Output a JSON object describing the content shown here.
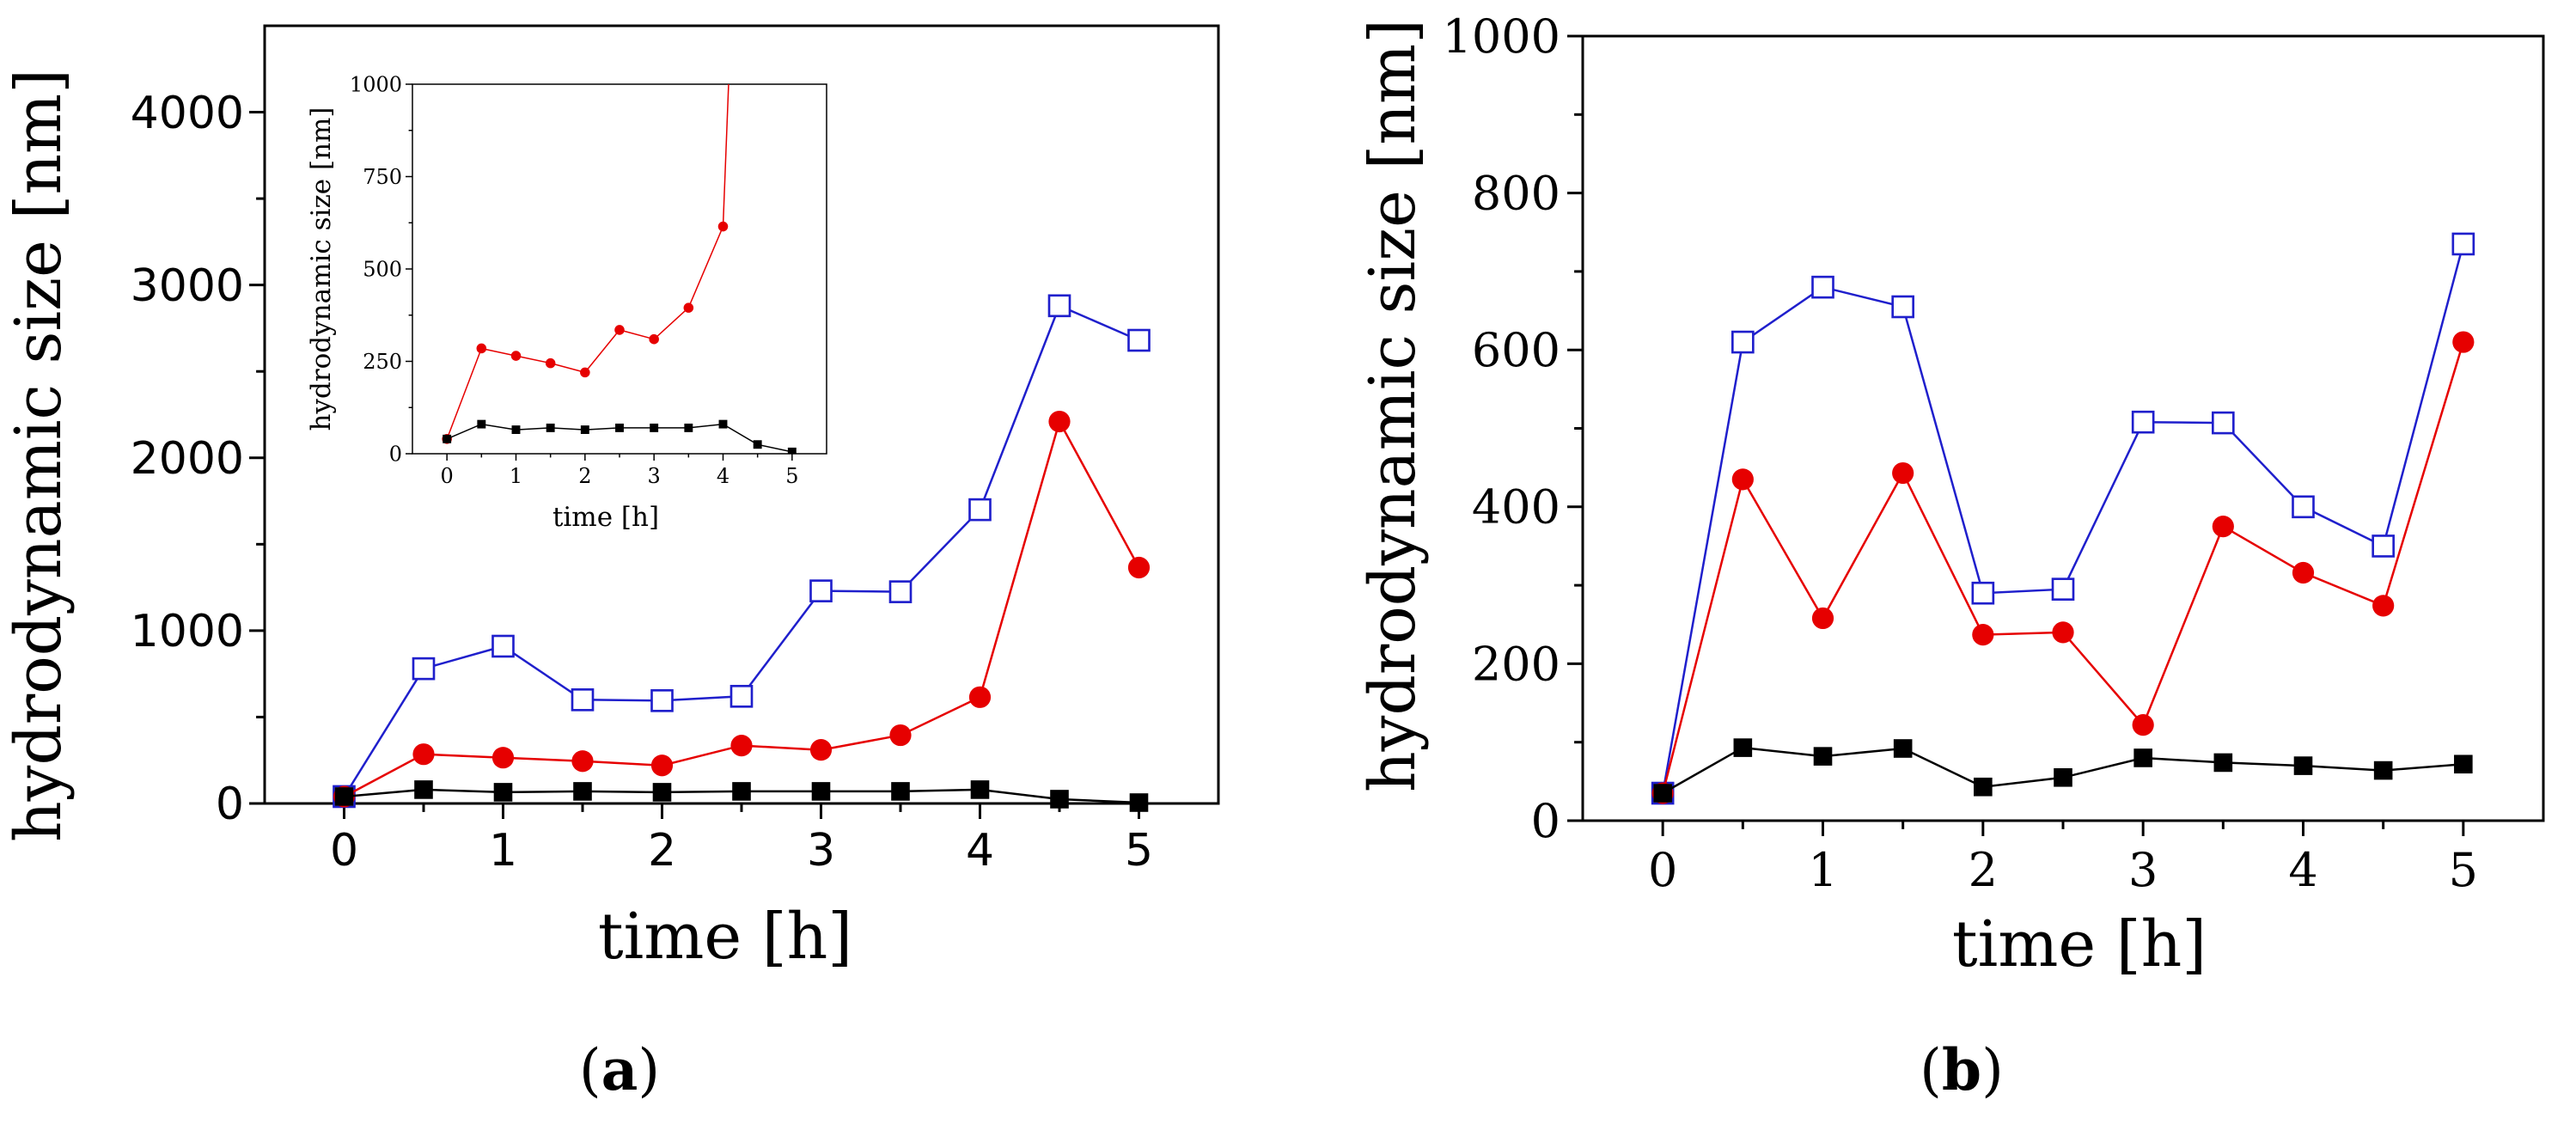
{
  "chart_data": [
    {
      "id": "a",
      "type": "line",
      "panel_label": "a",
      "xlabel": "time [h]",
      "ylabel": "hydrodynamic size [nm]",
      "xlim": [
        -0.5,
        5.5
      ],
      "ylim": [
        0,
        4500
      ],
      "xticks": [
        0,
        1,
        2,
        3,
        4,
        5
      ],
      "yticks": [
        0,
        1000,
        2000,
        3000,
        4000
      ],
      "x": [
        0,
        0.5,
        1,
        1.5,
        2,
        2.5,
        3,
        3.5,
        4,
        4.5,
        5
      ],
      "series": [
        {
          "name": "open-square",
          "color": "#1f1fcc",
          "marker": "open-square",
          "values": [
            40,
            780,
            910,
            600,
            595,
            620,
            1230,
            1225,
            1700,
            2880,
            2680
          ]
        },
        {
          "name": "filled-circle",
          "color": "#e60000",
          "marker": "filled-circle",
          "values": [
            40,
            285,
            265,
            245,
            220,
            335,
            310,
            395,
            615,
            2210,
            1365
          ]
        },
        {
          "name": "filled-square",
          "color": "#000000",
          "marker": "filled-square",
          "values": [
            40,
            80,
            65,
            70,
            65,
            70,
            70,
            70,
            80,
            25,
            5
          ]
        }
      ],
      "inset": {
        "type": "line",
        "xlabel": "time [h]",
        "ylabel": "hydrodynamic size [nm]",
        "xlim": [
          -0.5,
          5.5
        ],
        "ylim": [
          0,
          1000
        ],
        "xticks": [
          0,
          1,
          2,
          3,
          4,
          5
        ],
        "yticks": [
          0,
          250,
          500,
          750,
          1000
        ],
        "series": [
          {
            "name": "filled-circle",
            "color": "#e60000",
            "marker": "filled-circle",
            "x": [
              0,
              0.5,
              1,
              1.5,
              2,
              2.5,
              3,
              3.5,
              4
            ],
            "values": [
              40,
              285,
              265,
              245,
              220,
              335,
              310,
              395,
              615
            ],
            "continues_offscale_to_x": 4.1
          },
          {
            "name": "filled-square",
            "color": "#000000",
            "marker": "filled-square",
            "x": [
              0,
              0.5,
              1,
              1.5,
              2,
              2.5,
              3,
              3.5,
              4,
              4.5,
              5
            ],
            "values": [
              40,
              80,
              65,
              70,
              65,
              70,
              70,
              70,
              80,
              25,
              5
            ]
          }
        ]
      }
    },
    {
      "id": "b",
      "type": "line",
      "panel_label": "b",
      "xlabel": "time [h]",
      "ylabel": "hydrodynamic size [nm]",
      "xlim": [
        -0.5,
        5.5
      ],
      "ylim": [
        0,
        1000
      ],
      "xticks": [
        0,
        1,
        2,
        3,
        4,
        5
      ],
      "yticks": [
        0,
        200,
        400,
        600,
        800,
        1000
      ],
      "x": [
        0,
        0.5,
        1,
        1.5,
        2,
        2.5,
        3,
        3.5,
        4,
        4.5,
        5
      ],
      "series": [
        {
          "name": "open-square",
          "color": "#1f1fcc",
          "marker": "open-square",
          "values": [
            35,
            610,
            680,
            655,
            290,
            295,
            508,
            507,
            400,
            350,
            735
          ]
        },
        {
          "name": "filled-circle",
          "color": "#e60000",
          "marker": "filled-circle",
          "values": [
            35,
            435,
            258,
            443,
            237,
            240,
            122,
            375,
            316,
            274,
            610
          ]
        },
        {
          "name": "filled-square",
          "color": "#000000",
          "marker": "filled-square",
          "values": [
            35,
            93,
            82,
            92,
            43,
            55,
            80,
            74,
            70,
            64,
            72
          ]
        }
      ]
    }
  ]
}
